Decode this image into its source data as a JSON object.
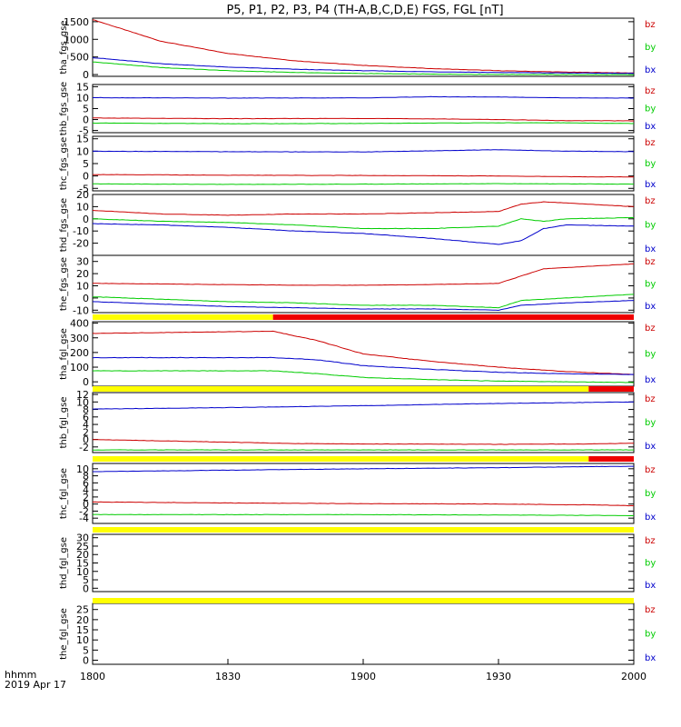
{
  "title": "P5, P1, P2, P3, P4 (TH-A,B,C,D,E) FGS, FGL [nT]",
  "time_axis": {
    "unit_label": "hhmm",
    "date_label": "2019 Apr 17",
    "ticks": [
      "1800",
      "1830",
      "1900",
      "1930",
      "2000"
    ]
  },
  "legend_labels": [
    "bz",
    "by",
    "bx"
  ],
  "colors": {
    "bx": "#0000cc",
    "by": "#00cc00",
    "bz": "#cc0000",
    "bar_yellow": "#ffff00",
    "bar_red": "#ee0000",
    "axes": "#000000"
  },
  "chart_data": [
    {
      "type": "line",
      "ylabel": "tha_fgs_gse",
      "ylim": [
        -50,
        1600
      ],
      "yticks": [
        "0",
        "500",
        "1000",
        "1500"
      ],
      "series": [
        {
          "name": "bz",
          "x": [
            "1800",
            "1815",
            "1830",
            "1845",
            "1900",
            "1915",
            "1930",
            "1945",
            "2000"
          ],
          "values": [
            1560,
            950,
            600,
            390,
            260,
            170,
            110,
            70,
            45
          ]
        },
        {
          "name": "by",
          "x": [
            "1800",
            "1815",
            "1830",
            "1845",
            "1900",
            "1915",
            "1930",
            "1945",
            "2000"
          ],
          "values": [
            360,
            200,
            110,
            60,
            30,
            12,
            4,
            0,
            -5
          ]
        },
        {
          "name": "bx",
          "x": [
            "1800",
            "1815",
            "1830",
            "1845",
            "1900",
            "1915",
            "1930",
            "1945",
            "2000"
          ],
          "values": [
            480,
            310,
            210,
            150,
            110,
            80,
            60,
            45,
            35
          ]
        }
      ]
    },
    {
      "type": "line",
      "ylabel": "thb_fgs_gse",
      "ylim": [
        -6,
        16
      ],
      "yticks": [
        "-5",
        "0",
        "5",
        "10",
        "15"
      ],
      "series": [
        {
          "name": "bz",
          "x": [
            "1800",
            "1830",
            "1900",
            "1915",
            "1930",
            "1945",
            "2000"
          ],
          "values": [
            0.7,
            0.4,
            0.5,
            0.3,
            0.0,
            -0.5,
            -0.6
          ]
        },
        {
          "name": "by",
          "x": [
            "1800",
            "1830",
            "1900",
            "1915",
            "1930",
            "1945",
            "2000"
          ],
          "values": [
            -1.6,
            -1.9,
            -1.8,
            -1.6,
            -1.5,
            -1.5,
            -1.8
          ]
        },
        {
          "name": "bx",
          "x": [
            "1800",
            "1830",
            "1900",
            "1915",
            "1930",
            "1945",
            "2000"
          ],
          "values": [
            10.0,
            9.8,
            9.9,
            10.4,
            10.3,
            9.9,
            9.8
          ]
        }
      ]
    },
    {
      "type": "line",
      "ylabel": "thc_fgs_gse",
      "ylim": [
        -6,
        16
      ],
      "yticks": [
        "-5",
        "0",
        "5",
        "10",
        "15"
      ],
      "series": [
        {
          "name": "bz",
          "x": [
            "1800",
            "1830",
            "1900",
            "1930",
            "1945",
            "2000"
          ],
          "values": [
            0.6,
            0.3,
            0.2,
            0.0,
            -0.3,
            -0.4
          ]
        },
        {
          "name": "by",
          "x": [
            "1800",
            "1830",
            "1900",
            "1930",
            "1945",
            "2000"
          ],
          "values": [
            -3.2,
            -3.4,
            -3.3,
            -3.1,
            -3.2,
            -3.3
          ]
        },
        {
          "name": "bx",
          "x": [
            "1800",
            "1830",
            "1900",
            "1930",
            "1945",
            "2000"
          ],
          "values": [
            10.0,
            9.8,
            9.7,
            10.6,
            10.0,
            9.8
          ]
        }
      ]
    },
    {
      "type": "line",
      "ylabel": "thd_fgs_gse",
      "ylim": [
        -30,
        20
      ],
      "yticks": [
        "-20",
        "-10",
        "0",
        "10",
        "20"
      ],
      "series": [
        {
          "name": "bz",
          "x": [
            "1800",
            "1815",
            "1830",
            "1845",
            "1900",
            "1915",
            "1930",
            "1935",
            "1940",
            "1945",
            "2000"
          ],
          "values": [
            7,
            4,
            3,
            4,
            4,
            5,
            6,
            12,
            14,
            13,
            10
          ]
        },
        {
          "name": "by",
          "x": [
            "1800",
            "1815",
            "1830",
            "1845",
            "1900",
            "1915",
            "1930",
            "1935",
            "1940",
            "1945",
            "2000"
          ],
          "values": [
            0,
            -2,
            -3,
            -5,
            -8,
            -8,
            -6,
            0,
            -2,
            0,
            1
          ]
        },
        {
          "name": "bx",
          "x": [
            "1800",
            "1815",
            "1830",
            "1845",
            "1900",
            "1915",
            "1930",
            "1935",
            "1940",
            "1945",
            "2000"
          ],
          "values": [
            -4,
            -5,
            -7,
            -10,
            -12,
            -16,
            -21,
            -18,
            -8,
            -5,
            -6
          ]
        }
      ]
    },
    {
      "type": "line",
      "ylabel": "the_fgs_gse",
      "ylim": [
        -12,
        35
      ],
      "yticks": [
        "-10",
        "0",
        "10",
        "20",
        "30"
      ],
      "series": [
        {
          "name": "bz",
          "x": [
            "1800",
            "1815",
            "1830",
            "1845",
            "1900",
            "1915",
            "1930",
            "1935",
            "1940",
            "1945",
            "2000"
          ],
          "values": [
            12,
            11.5,
            11,
            10.5,
            10.5,
            11,
            12,
            18,
            24,
            25,
            28
          ]
        },
        {
          "name": "by",
          "x": [
            "1800",
            "1815",
            "1830",
            "1845",
            "1900",
            "1915",
            "1930",
            "1935",
            "1940",
            "1945",
            "2000"
          ],
          "values": [
            1,
            -1,
            -3,
            -4,
            -6,
            -6,
            -8,
            -2,
            -1,
            0,
            3
          ]
        },
        {
          "name": "bx",
          "x": [
            "1800",
            "1815",
            "1830",
            "1845",
            "1900",
            "1915",
            "1930",
            "1935",
            "1940",
            "1945",
            "2000"
          ],
          "values": [
            -3,
            -5,
            -7,
            -8,
            -9,
            -9,
            -10,
            -6,
            -5,
            -4,
            -2
          ]
        }
      ]
    },
    {
      "type": "line",
      "ylabel": "tha_fgl_gse",
      "ylim": [
        -30,
        410
      ],
      "yticks": [
        "0",
        "100",
        "200",
        "300",
        "400"
      ],
      "series": [
        {
          "name": "bz",
          "x": [
            "1800",
            "1840",
            "1850",
            "1900",
            "1915",
            "1930",
            "1945",
            "2000"
          ],
          "values": [
            330,
            345,
            280,
            190,
            140,
            100,
            70,
            50
          ]
        },
        {
          "name": "by",
          "x": [
            "1800",
            "1840",
            "1850",
            "1900",
            "1915",
            "1930",
            "1945",
            "2000"
          ],
          "values": [
            75,
            75,
            55,
            30,
            15,
            5,
            0,
            -5
          ]
        },
        {
          "name": "bx",
          "x": [
            "1800",
            "1840",
            "1850",
            "1900",
            "1915",
            "1930",
            "1945",
            "2000"
          ],
          "values": [
            165,
            165,
            150,
            110,
            85,
            65,
            55,
            50
          ]
        }
      ]
    },
    {
      "type": "line",
      "ylabel": "thb_fgl_gse",
      "ylim": [
        -3.5,
        12.5
      ],
      "yticks": [
        "-2",
        "0",
        "2",
        "4",
        "6",
        "8",
        "10",
        "12"
      ],
      "series": [
        {
          "name": "bz",
          "x": [
            "1800",
            "1845",
            "1900",
            "1930",
            "1950",
            "2000"
          ],
          "values": [
            0.0,
            -1.1,
            -1.2,
            -1.3,
            -1.2,
            -1.0
          ]
        },
        {
          "name": "by",
          "x": [
            "1800",
            "1900",
            "1950",
            "2000"
          ],
          "values": [
            -2.8,
            -2.8,
            -2.8,
            -2.8
          ]
        },
        {
          "name": "bx",
          "x": [
            "1800",
            "1830",
            "1900",
            "1930",
            "2000"
          ],
          "values": [
            8.1,
            8.5,
            9.0,
            9.6,
            10.0
          ]
        }
      ]
    },
    {
      "type": "line",
      "ylabel": "thc_fgl_gse",
      "ylim": [
        -5.5,
        11.5
      ],
      "yticks": [
        "-4",
        "-2",
        "0",
        "2",
        "4",
        "6",
        "8",
        "10"
      ],
      "series": [
        {
          "name": "bz",
          "x": [
            "1800",
            "1830",
            "1900",
            "1930",
            "1945",
            "1950",
            "2000"
          ],
          "values": [
            0.6,
            0.3,
            0.1,
            0.0,
            -0.2,
            -0.2,
            -0.5
          ]
        },
        {
          "name": "by",
          "x": [
            "1800",
            "1900",
            "1950",
            "2000"
          ],
          "values": [
            -3.0,
            -3.0,
            -3.2,
            -3.3
          ]
        },
        {
          "name": "bx",
          "x": [
            "1800",
            "1830",
            "1900",
            "1930",
            "1950",
            "2000"
          ],
          "values": [
            9.2,
            9.6,
            10.0,
            10.3,
            10.6,
            10.7
          ]
        }
      ]
    },
    {
      "type": "line",
      "ylabel": "thd_fgl_gse",
      "ylim": [
        -2,
        32
      ],
      "yticks": [
        "0",
        "5",
        "10",
        "15",
        "20",
        "25",
        "30"
      ],
      "series": []
    },
    {
      "type": "line",
      "ylabel": "the_fgl_gse",
      "ylim": [
        -2,
        28
      ],
      "yticks": [
        "0",
        "5",
        "10",
        "15",
        "20",
        "25"
      ],
      "series": []
    }
  ],
  "mode_bars": [
    {
      "after_panel": 4,
      "segments": [
        {
          "color": "yellow",
          "from": "1800",
          "to": "1840"
        },
        {
          "color": "red",
          "from": "1840",
          "to": "2000"
        }
      ]
    },
    {
      "after_panel": 5,
      "segments": [
        {
          "color": "yellow",
          "from": "1800",
          "to": "1950"
        },
        {
          "color": "red",
          "from": "1950",
          "to": "2000"
        }
      ]
    },
    {
      "after_panel": 6,
      "segments": [
        {
          "color": "yellow",
          "from": "1800",
          "to": "1950"
        },
        {
          "color": "red",
          "from": "1950",
          "to": "2000"
        }
      ]
    },
    {
      "after_panel": 7,
      "segments": [
        {
          "color": "yellow",
          "from": "1800",
          "to": "2000"
        }
      ]
    },
    {
      "after_panel": 8,
      "segments": [
        {
          "color": "yellow",
          "from": "1800",
          "to": "2000"
        }
      ]
    }
  ]
}
